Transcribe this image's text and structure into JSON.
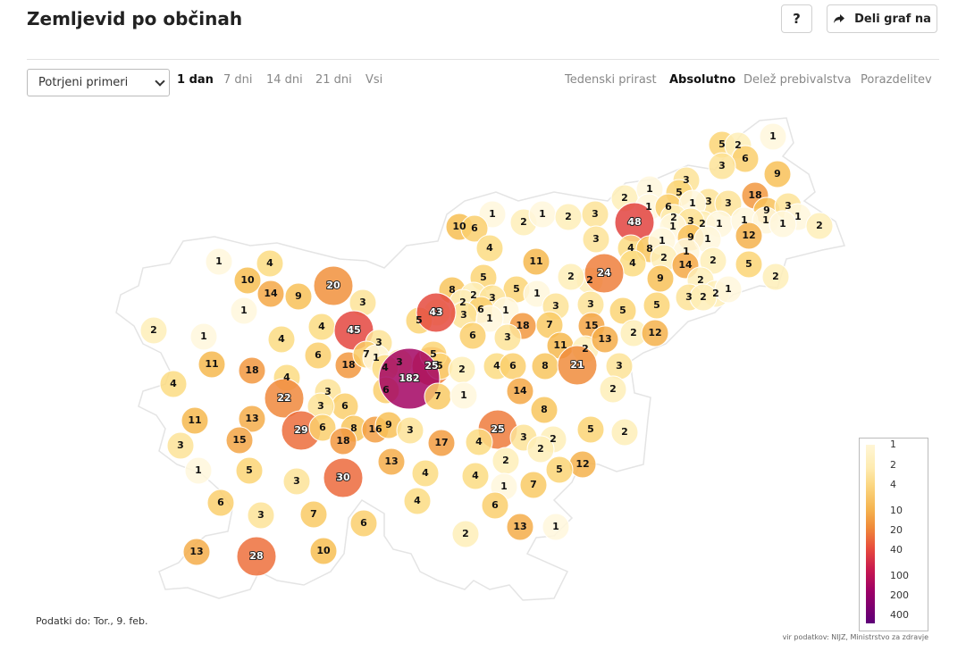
{
  "header": {
    "title": "Zemljevid po občinah",
    "help_label": "?",
    "share_label": "Deli graf na"
  },
  "controls": {
    "metric_select": {
      "value": "Potrjeni primeri"
    },
    "period_tabs": [
      {
        "label": "1 dan",
        "active": true
      },
      {
        "label": "7 dni",
        "active": false
      },
      {
        "label": "14 dni",
        "active": false
      },
      {
        "label": "21 dni",
        "active": false
      },
      {
        "label": "Vsi",
        "active": false
      }
    ],
    "mode_tabs": [
      {
        "label": "Tedenski prirast",
        "active": false
      },
      {
        "label": "Absolutno",
        "active": true
      },
      {
        "label": "Delež prebivalstva",
        "active": false
      },
      {
        "label": "Porazdelitev",
        "active": false
      }
    ]
  },
  "map": {
    "municipality_values": [
      "1",
      "5",
      "2",
      "6",
      "3",
      "9",
      "2",
      "1",
      "3",
      "5",
      "3",
      "18",
      "9",
      "3",
      "1",
      "6",
      "1",
      "3",
      "1",
      "2",
      "1",
      "1",
      "1",
      "1",
      "2",
      "2",
      "3",
      "1",
      "10",
      "2",
      "1",
      "2",
      "3",
      "48",
      "1",
      "9",
      "1",
      "12",
      "6",
      "4",
      "3",
      "4",
      "8",
      "1",
      "1",
      "2",
      "4",
      "14",
      "2",
      "5",
      "1",
      "4",
      "11",
      "2",
      "5",
      "24",
      "2",
      "9",
      "2",
      "2",
      "1",
      "2",
      "10",
      "14",
      "9",
      "20",
      "5",
      "8",
      "2",
      "3",
      "1",
      "1",
      "3",
      "2",
      "2",
      "6",
      "1",
      "3",
      "3",
      "5",
      "5",
      "3",
      "2",
      "2",
      "1",
      "3",
      "1",
      "4",
      "5",
      "43",
      "18",
      "7",
      "15",
      "45",
      "4",
      "6",
      "3",
      "11",
      "3",
      "2",
      "12",
      "6",
      "2",
      "13",
      "18",
      "7",
      "3",
      "25",
      "4",
      "8",
      "21",
      "11",
      "18",
      "1",
      "4",
      "5",
      "5",
      "2",
      "6",
      "3",
      "4",
      "6",
      "182",
      "4",
      "7",
      "1",
      "14",
      "2",
      "3",
      "22",
      "6",
      "3",
      "8",
      "16",
      "9",
      "3",
      "8",
      "13",
      "29",
      "6",
      "11",
      "18",
      "17",
      "5",
      "2",
      "25",
      "3",
      "15",
      "2",
      "4",
      "2",
      "3",
      "1",
      "5",
      "2",
      "12",
      "5",
      "30",
      "13",
      "4",
      "4",
      "7",
      "3",
      "1",
      "6",
      "4",
      "3",
      "7",
      "6",
      "6",
      "13",
      "1",
      "2",
      "13",
      "28",
      "10"
    ],
    "legend_ticks": [
      "1",
      "2",
      "4",
      "10",
      "20",
      "40",
      "100",
      "200",
      "400"
    ]
  },
  "footer": {
    "data_date": "Podatki do: Tor., 9. feb.",
    "source": "vir podatkov: NIJZ, Ministrstvo za zdravje"
  }
}
